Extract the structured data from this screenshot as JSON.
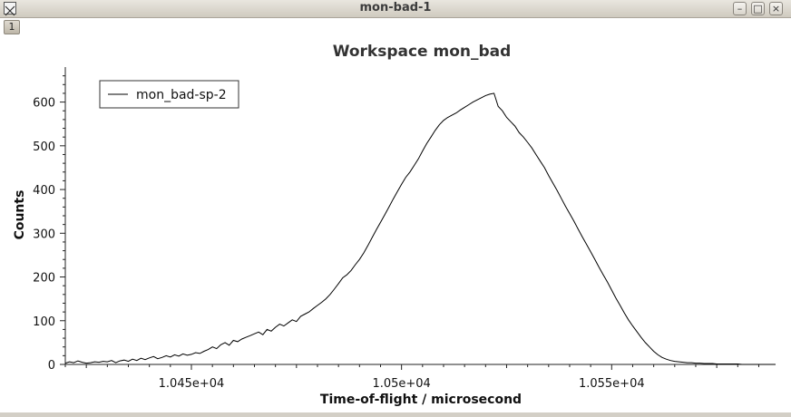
{
  "window": {
    "title": "mon-bad-1",
    "tab_label": "1",
    "minimize_glyph": "–",
    "maximize_glyph": "□",
    "close_glyph": "×"
  },
  "chart_data": {
    "type": "line",
    "title": "Workspace mon_bad",
    "xlabel": "Time-of-flight / microsecond",
    "ylabel": "Counts",
    "xlim": [
      10420,
      10589
    ],
    "ylim": [
      0,
      680
    ],
    "xticks": [
      10450,
      10500,
      10550
    ],
    "xtick_labels": [
      "1.045e+04",
      "1.05e+04",
      "1.055e+04"
    ],
    "yticks": [
      0,
      100,
      200,
      300,
      400,
      500,
      600
    ],
    "legend_position": "top-left",
    "grid": false,
    "series": [
      {
        "name": "mon_bad-sp-2",
        "color": "#000000",
        "x": [
          10420,
          10421,
          10422,
          10423,
          10424,
          10425,
          10426,
          10427,
          10428,
          10429,
          10430,
          10431,
          10432,
          10433,
          10434,
          10435,
          10436,
          10437,
          10438,
          10439,
          10440,
          10441,
          10442,
          10443,
          10444,
          10445,
          10446,
          10447,
          10448,
          10449,
          10450,
          10451,
          10452,
          10453,
          10454,
          10455,
          10456,
          10457,
          10458,
          10459,
          10460,
          10461,
          10462,
          10463,
          10464,
          10465,
          10466,
          10467,
          10468,
          10469,
          10470,
          10471,
          10472,
          10473,
          10474,
          10475,
          10476,
          10477,
          10478,
          10479,
          10480,
          10481,
          10482,
          10483,
          10484,
          10485,
          10486,
          10487,
          10488,
          10489,
          10490,
          10491,
          10492,
          10493,
          10494,
          10495,
          10496,
          10497,
          10498,
          10499,
          10500,
          10501,
          10502,
          10503,
          10504,
          10505,
          10506,
          10507,
          10508,
          10509,
          10510,
          10511,
          10512,
          10513,
          10514,
          10515,
          10516,
          10517,
          10518,
          10519,
          10520,
          10521,
          10522,
          10523,
          10524,
          10525,
          10526,
          10527,
          10528,
          10529,
          10530,
          10531,
          10532,
          10533,
          10534,
          10535,
          10536,
          10537,
          10538,
          10539,
          10540,
          10541,
          10542,
          10543,
          10544,
          10545,
          10546,
          10547,
          10548,
          10549,
          10550,
          10551,
          10552,
          10553,
          10554,
          10555,
          10556,
          10557,
          10558,
          10559,
          10560,
          10561,
          10562,
          10563,
          10564,
          10565,
          10566,
          10567,
          10568,
          10569,
          10570,
          10571,
          10572,
          10573,
          10574,
          10575,
          10576,
          10577,
          10578,
          10579,
          10580,
          10581,
          10582,
          10583,
          10584,
          10585,
          10586,
          10587,
          10588,
          10589
        ],
        "y": [
          3,
          6,
          4,
          8,
          5,
          3,
          4,
          6,
          5,
          7,
          6,
          9,
          4,
          8,
          10,
          7,
          12,
          9,
          14,
          11,
          15,
          18,
          13,
          16,
          20,
          17,
          22,
          19,
          24,
          21,
          23,
          27,
          25,
          30,
          34,
          40,
          36,
          45,
          50,
          44,
          55,
          52,
          58,
          62,
          66,
          70,
          74,
          68,
          80,
          76,
          85,
          92,
          88,
          95,
          102,
          98,
          110,
          115,
          120,
          128,
          135,
          142,
          150,
          160,
          172,
          185,
          198,
          205,
          215,
          228,
          240,
          255,
          272,
          290,
          308,
          325,
          342,
          360,
          378,
          395,
          412,
          428,
          440,
          455,
          470,
          488,
          505,
          520,
          535,
          548,
          558,
          565,
          570,
          575,
          582,
          588,
          594,
          600,
          605,
          610,
          615,
          618,
          620,
          590,
          580,
          565,
          555,
          545,
          530,
          520,
          508,
          495,
          480,
          465,
          450,
          432,
          415,
          398,
          380,
          362,
          345,
          328,
          310,
          292,
          275,
          258,
          240,
          222,
          205,
          188,
          170,
          152,
          135,
          118,
          102,
          88,
          75,
          62,
          50,
          40,
          30,
          22,
          16,
          12,
          9,
          7,
          6,
          5,
          4,
          4,
          3,
          3,
          2,
          2,
          2,
          1,
          1,
          1,
          1,
          1,
          1,
          0,
          0,
          0,
          0,
          0,
          0,
          0,
          0,
          0
        ]
      }
    ]
  }
}
